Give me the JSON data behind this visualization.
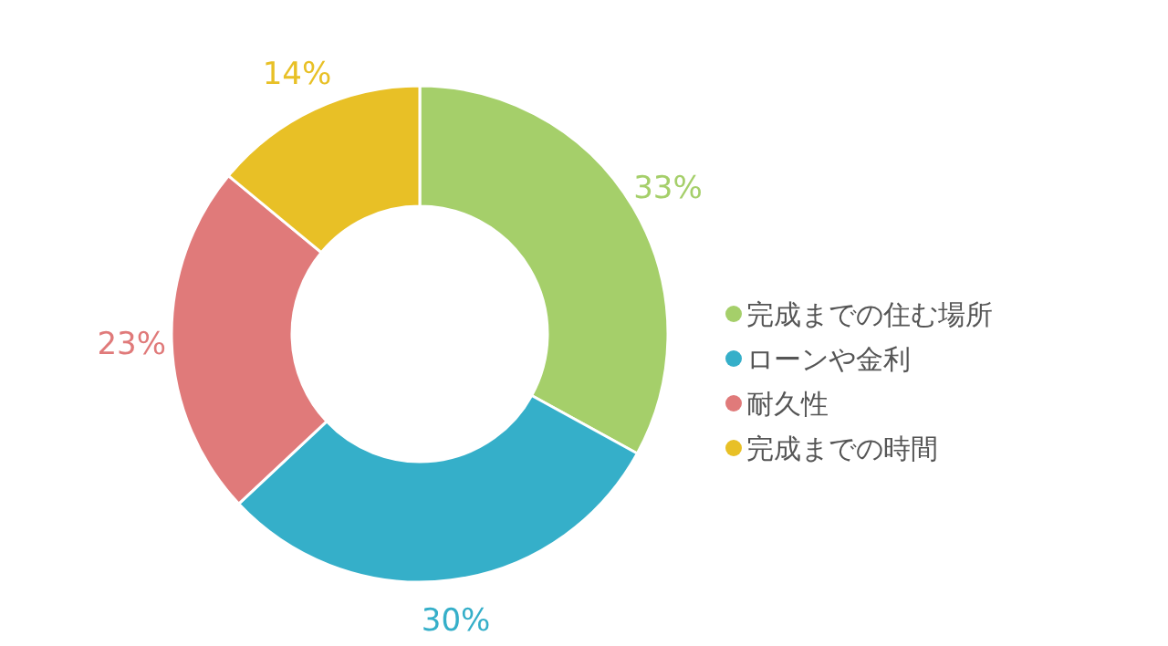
{
  "chart_data": {
    "type": "donut",
    "categories": [
      "完成までの住む場所",
      "ローンや金利",
      "耐久性",
      "完成までの時間"
    ],
    "values": [
      33,
      30,
      23,
      14
    ],
    "colors": [
      "#a5cf6a",
      "#35afc9",
      "#e07a7a",
      "#e8c026"
    ],
    "value_labels": [
      "33%",
      "30%",
      "23%",
      "14%"
    ],
    "legend": "right"
  }
}
